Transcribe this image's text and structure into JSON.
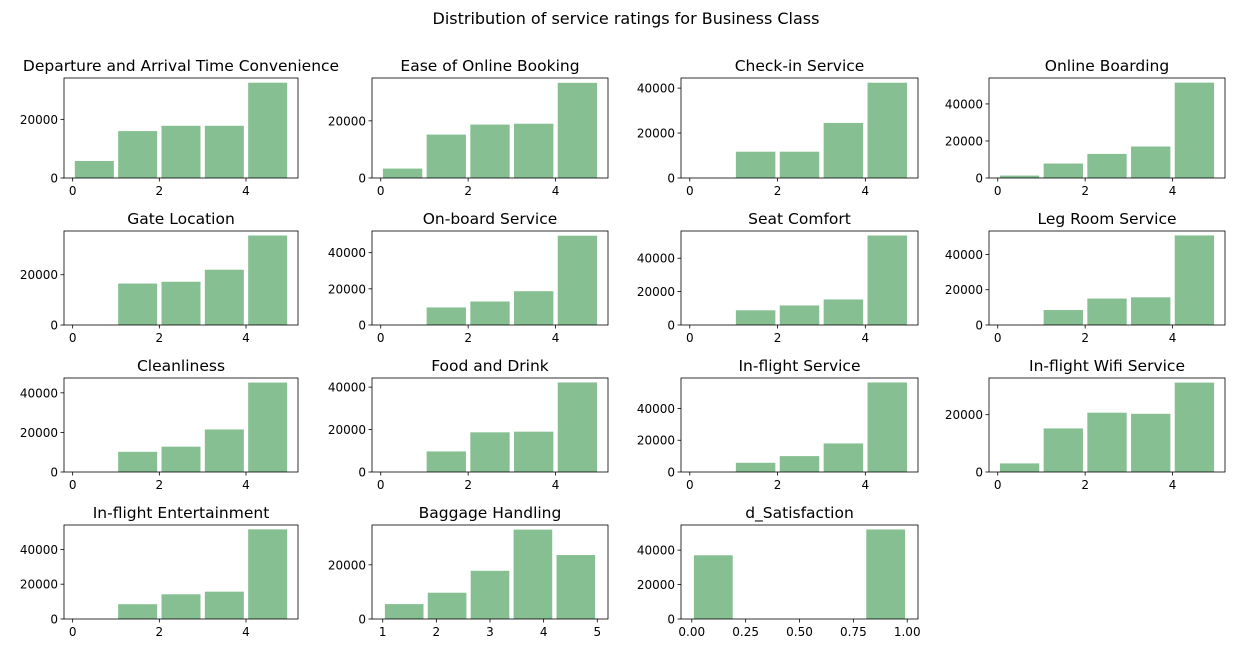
{
  "title": "Distribution of service ratings for Business Class",
  "chart_data": [
    {
      "type": "histogram",
      "title": "Departure and Arrival Time Convenience",
      "color": "#86bf91",
      "bins": [
        0,
        1,
        2,
        3,
        4,
        5
      ],
      "values": [
        5800,
        16000,
        17800,
        17800,
        32500
      ],
      "xlim": [
        -0.2,
        5.2
      ],
      "ylim": [
        0,
        34100
      ],
      "xticks": [
        0,
        2,
        4
      ],
      "yticks": [
        0,
        20000
      ]
    },
    {
      "type": "histogram",
      "title": "Ease of Online Booking",
      "color": "#86bf91",
      "bins": [
        0,
        1,
        2,
        3,
        4,
        5
      ],
      "values": [
        3300,
        15200,
        18700,
        19000,
        33300
      ],
      "xlim": [
        -0.2,
        5.2
      ],
      "ylim": [
        0,
        35000
      ],
      "xticks": [
        0,
        2,
        4
      ],
      "yticks": [
        0,
        20000
      ]
    },
    {
      "type": "histogram",
      "title": "Check-in Service",
      "color": "#86bf91",
      "bins": [
        0,
        1,
        2,
        3,
        4,
        5
      ],
      "values": [
        0,
        11700,
        11700,
        24500,
        42400
      ],
      "xlim": [
        -0.2,
        5.2
      ],
      "ylim": [
        0,
        44500
      ],
      "xticks": [
        0,
        2,
        4
      ],
      "yticks": [
        0,
        20000,
        40000
      ]
    },
    {
      "type": "histogram",
      "title": "Online Boarding",
      "color": "#86bf91",
      "bins": [
        0,
        1,
        2,
        3,
        4,
        5
      ],
      "values": [
        1300,
        7800,
        13000,
        17000,
        51500
      ],
      "xlim": [
        -0.2,
        5.2
      ],
      "ylim": [
        0,
        54000
      ],
      "xticks": [
        0,
        2,
        4
      ],
      "yticks": [
        0,
        20000,
        40000
      ]
    },
    {
      "type": "histogram",
      "title": "Gate Location",
      "color": "#86bf91",
      "bins": [
        0,
        1,
        2,
        3,
        4,
        5
      ],
      "values": [
        0,
        16500,
        17200,
        22000,
        35600
      ],
      "xlim": [
        -0.2,
        5.2
      ],
      "ylim": [
        0,
        37400
      ],
      "xticks": [
        0,
        2,
        4
      ],
      "yticks": [
        0,
        20000
      ]
    },
    {
      "type": "histogram",
      "title": "On-board Service",
      "color": "#86bf91",
      "bins": [
        0,
        1,
        2,
        3,
        4,
        5
      ],
      "values": [
        0,
        9700,
        13000,
        18700,
        49400
      ],
      "xlim": [
        -0.2,
        5.2
      ],
      "ylim": [
        0,
        52000
      ],
      "xticks": [
        0,
        2,
        4
      ],
      "yticks": [
        0,
        20000,
        40000
      ]
    },
    {
      "type": "histogram",
      "title": "Seat Comfort",
      "color": "#86bf91",
      "bins": [
        0,
        1,
        2,
        3,
        4,
        5
      ],
      "values": [
        0,
        8800,
        11700,
        15300,
        53600
      ],
      "xlim": [
        -0.2,
        5.2
      ],
      "ylim": [
        0,
        56300
      ],
      "xticks": [
        0,
        2,
        4
      ],
      "yticks": [
        0,
        20000,
        40000
      ]
    },
    {
      "type": "histogram",
      "title": "Leg Room Service",
      "color": "#86bf91",
      "bins": [
        0,
        1,
        2,
        3,
        4,
        5
      ],
      "values": [
        0,
        8500,
        15000,
        15700,
        50800
      ],
      "xlim": [
        -0.2,
        5.2
      ],
      "ylim": [
        0,
        53300
      ],
      "xticks": [
        0,
        2,
        4
      ],
      "yticks": [
        0,
        20000,
        40000
      ]
    },
    {
      "type": "histogram",
      "title": "Cleanliness",
      "color": "#86bf91",
      "bins": [
        0,
        1,
        2,
        3,
        4,
        5
      ],
      "values": [
        0,
        10200,
        12800,
        21500,
        45200
      ],
      "xlim": [
        -0.2,
        5.2
      ],
      "ylim": [
        0,
        47500
      ],
      "xticks": [
        0,
        2,
        4
      ],
      "yticks": [
        0,
        20000,
        40000
      ]
    },
    {
      "type": "histogram",
      "title": "Food and Drink",
      "color": "#86bf91",
      "bins": [
        0,
        1,
        2,
        3,
        4,
        5
      ],
      "values": [
        0,
        9700,
        18700,
        19000,
        42200
      ],
      "xlim": [
        -0.2,
        5.2
      ],
      "ylim": [
        0,
        44300
      ],
      "xticks": [
        0,
        2,
        4
      ],
      "yticks": [
        0,
        20000,
        40000
      ]
    },
    {
      "type": "histogram",
      "title": "In-flight Service",
      "color": "#86bf91",
      "bins": [
        0,
        1,
        2,
        3,
        4,
        5
      ],
      "values": [
        0,
        5800,
        10000,
        18000,
        56400
      ],
      "xlim": [
        -0.2,
        5.2
      ],
      "ylim": [
        0,
        59200
      ],
      "xticks": [
        0,
        2,
        4
      ],
      "yticks": [
        0,
        20000,
        40000
      ]
    },
    {
      "type": "histogram",
      "title": "In-flight Wifi Service",
      "color": "#86bf91",
      "bins": [
        0,
        1,
        2,
        3,
        4,
        5
      ],
      "values": [
        3000,
        15200,
        20700,
        20300,
        31200
      ],
      "xlim": [
        -0.2,
        5.2
      ],
      "ylim": [
        0,
        32800
      ],
      "xticks": [
        0,
        2,
        4
      ],
      "yticks": [
        0,
        20000
      ]
    },
    {
      "type": "histogram",
      "title": "In-flight Entertainment",
      "color": "#86bf91",
      "bins": [
        0,
        1,
        2,
        3,
        4,
        5
      ],
      "values": [
        0,
        8500,
        14200,
        15700,
        51500
      ],
      "xlim": [
        -0.2,
        5.2
      ],
      "ylim": [
        0,
        54000
      ],
      "xticks": [
        0,
        2,
        4
      ],
      "yticks": [
        0,
        20000,
        40000
      ]
    },
    {
      "type": "histogram",
      "title": "Baggage Handling",
      "color": "#86bf91",
      "bins": [
        1,
        1.8,
        2.6,
        3.4,
        4.2,
        5
      ],
      "values": [
        5500,
        9700,
        17800,
        33000,
        23600
      ],
      "xlim": [
        0.8,
        5.2
      ],
      "ylim": [
        0,
        34700
      ],
      "xticks": [
        1,
        2,
        3,
        4,
        5
      ],
      "yticks": [
        0,
        20000
      ]
    },
    {
      "type": "histogram",
      "title": "d_Satisfaction",
      "color": "#86bf91",
      "bins": [
        0,
        0.2,
        0.4,
        0.6,
        0.8,
        1
      ],
      "values": [
        37000,
        0,
        0,
        0,
        52000
      ],
      "xlim": [
        -0.05,
        1.05
      ],
      "ylim": [
        0,
        54600
      ],
      "xticks": [
        {
          "value": 0,
          "label": "0.00"
        },
        0.25,
        {
          "value": 0.5,
          "label": "0.50"
        },
        0.75,
        {
          "value": 1,
          "label": "1.00"
        }
      ],
      "yticks": [
        0,
        20000,
        40000
      ]
    }
  ]
}
